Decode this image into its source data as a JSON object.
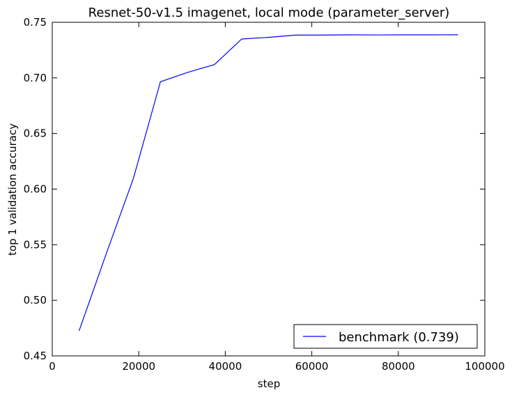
{
  "chart_data": {
    "type": "line",
    "title": "Resnet-50-v1.5 imagenet, local mode (parameter_server)",
    "xlabel": "step",
    "ylabel": "top 1 validation accuracy",
    "xlim": [
      0,
      100000
    ],
    "ylim": [
      0.45,
      0.75
    ],
    "xticks": [
      0,
      20000,
      40000,
      60000,
      80000,
      100000
    ],
    "xtick_labels": [
      "0",
      "20000",
      "40000",
      "60000",
      "80000",
      "100000"
    ],
    "yticks": [
      0.45,
      0.5,
      0.55,
      0.6,
      0.65,
      0.7,
      0.75
    ],
    "ytick_labels": [
      "0.45",
      "0.50",
      "0.55",
      "0.60",
      "0.65",
      "0.70",
      "0.75"
    ],
    "grid": false,
    "legend_position": "lower-right",
    "series": [
      {
        "name": "benchmark (0.739)",
        "color": "#0000ff",
        "x": [
          6200,
          12500,
          18800,
          25000,
          31300,
          37500,
          43800,
          50000,
          56300,
          62500,
          68800,
          75000,
          81300,
          87500,
          93800
        ],
        "y": [
          0.4725,
          0.542,
          0.61,
          0.6965,
          0.705,
          0.712,
          0.735,
          0.7365,
          0.7385,
          0.7385,
          0.7387,
          0.7386,
          0.7387,
          0.7387,
          0.7388
        ]
      }
    ]
  }
}
